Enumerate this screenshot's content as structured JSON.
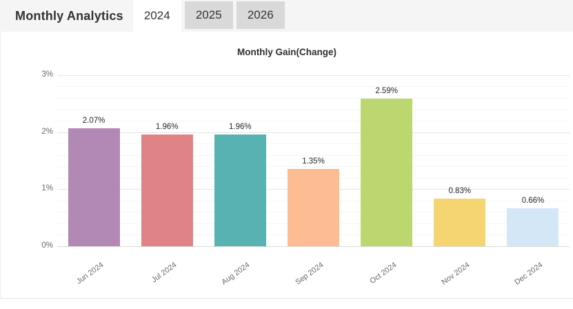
{
  "header": {
    "title": "Monthly Analytics",
    "tabs": [
      {
        "label": "2024",
        "active": true
      },
      {
        "label": "2025",
        "active": false
      },
      {
        "label": "2026",
        "active": false
      }
    ]
  },
  "colors": {
    "header_bg": "#f5f5f5",
    "tab_inactive_bg": "#d9d9d9",
    "tab_active_bg": "#ffffff",
    "grid_major": "#e4e4e4",
    "grid_minor": "#f5f5f5"
  },
  "chart_data": {
    "type": "bar",
    "title": "Monthly Gain(Change)",
    "categories": [
      "Jun 2024",
      "Jul 2024",
      "Aug 2024",
      "Sep 2024",
      "Oct 2024",
      "Nov 2024",
      "Dec 2024"
    ],
    "values": [
      2.07,
      1.96,
      1.96,
      1.35,
      2.59,
      0.83,
      0.66
    ],
    "value_labels": [
      "2.07%",
      "1.96%",
      "1.96%",
      "1.35%",
      "2.59%",
      "0.83%",
      "0.66%"
    ],
    "bar_colors": [
      "#b288b5",
      "#df8386",
      "#57b2b1",
      "#fdbc92",
      "#bcd76f",
      "#f4d572",
      "#d4e7f6"
    ],
    "xlabel": "",
    "ylabel": "",
    "ylim": [
      0,
      3
    ],
    "ytick_labels": [
      "0%",
      "1%",
      "2%",
      "3%"
    ],
    "minor_grid_step": 0.2,
    "grid": true,
    "legend": "none"
  }
}
